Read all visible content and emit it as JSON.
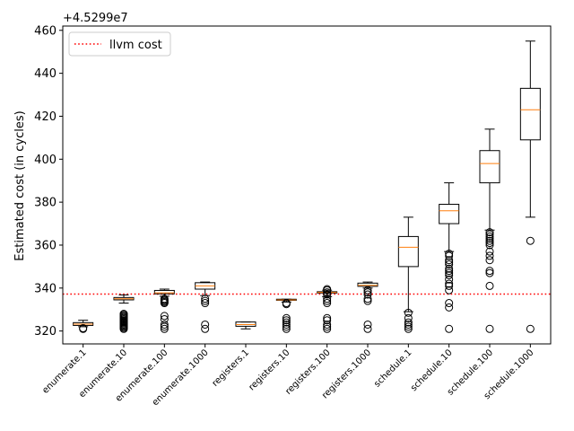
{
  "chart_data": {
    "type": "box",
    "ylabel": "Estimated cost (in cycles)",
    "y_offset_label": "+4.5299e7",
    "ylim": [
      314,
      462
    ],
    "yticks": [
      320,
      340,
      360,
      380,
      400,
      420,
      440,
      460
    ],
    "legend": {
      "label": "llvm cost",
      "placement": "top-left",
      "color": "#ff0000",
      "style": "dotted"
    },
    "reference_line": {
      "name": "llvm cost",
      "y": 337.2
    },
    "colors": {
      "box": "#000000",
      "median": "#ff7f0e",
      "reference": "#ff0000"
    },
    "categories": [
      "enumerate.1",
      "enumerate.10",
      "enumerate.100",
      "enumerate.1000",
      "registers.1",
      "registers.10",
      "registers.100",
      "registers.1000",
      "schedule.1",
      "schedule.10",
      "schedule.100",
      "schedule.1000"
    ],
    "boxes": [
      {
        "category": "enumerate.1",
        "whislo": 322.0,
        "q1": 322.6,
        "med": 323.2,
        "q3": 323.9,
        "whishi": 325.0,
        "fliers": [
          321.0,
          321.3
        ]
      },
      {
        "category": "enumerate.10",
        "whislo": 333.0,
        "q1": 334.5,
        "med": 335.0,
        "q3": 335.6,
        "whishi": 336.8,
        "fliers": [
          321.0,
          321.5,
          322.0,
          322.5,
          323.0,
          323.5,
          324.0,
          324.5,
          325.0,
          325.5,
          326.0,
          326.5,
          327.0,
          327.5,
          328.0
        ]
      },
      {
        "category": "enumerate.100",
        "whislo": 336.2,
        "q1": 337.3,
        "med": 337.8,
        "q3": 338.9,
        "whishi": 339.5,
        "fliers": [
          321.0,
          322.0,
          323.0,
          325.5,
          327.0,
          333.0,
          333.5,
          334.0,
          334.5,
          335.0
        ]
      },
      {
        "category": "enumerate.1000",
        "whislo": 336.5,
        "q1": 339.5,
        "med": 341.0,
        "q3": 342.5,
        "whishi": 342.8,
        "fliers": [
          321.0,
          323.0,
          333.0,
          334.0,
          335.0
        ]
      },
      {
        "category": "registers.1",
        "whislo": 321.0,
        "q1": 322.2,
        "med": 323.0,
        "q3": 324.2,
        "whishi": 324.2,
        "fliers": []
      },
      {
        "category": "registers.10",
        "whislo": 333.5,
        "q1": 334.3,
        "med": 334.5,
        "q3": 334.8,
        "whishi": 334.8,
        "fliers": [
          321.0,
          322.0,
          323.0,
          324.0,
          325.0,
          326.0,
          332.5,
          333.0
        ]
      },
      {
        "category": "registers.100",
        "whislo": 336.0,
        "q1": 337.7,
        "med": 338.0,
        "q3": 338.3,
        "whishi": 339.0,
        "fliers": [
          321.0,
          322.0,
          323.0,
          325.0,
          326.0,
          333.0,
          334.0,
          335.0,
          337.0,
          338.0,
          339.0,
          339.5
        ]
      },
      {
        "category": "registers.1000",
        "whislo": 340.0,
        "q1": 340.8,
        "med": 341.3,
        "q3": 342.3,
        "whishi": 342.8,
        "fliers": [
          321.0,
          323.0,
          334.0,
          335.0,
          337.0,
          338.0,
          339.0
        ]
      },
      {
        "category": "schedule.1",
        "whislo": 329.0,
        "q1": 350.0,
        "med": 359.0,
        "q3": 364.0,
        "whishi": 373.0,
        "fliers": [
          321.0,
          322.0,
          323.0,
          324.0,
          326.0,
          328.5
        ]
      },
      {
        "category": "schedule.10",
        "whislo": 357.0,
        "q1": 370.0,
        "med": 376.0,
        "q3": 379.0,
        "whishi": 389.0,
        "fliers": [
          321.0,
          331.0,
          333.0,
          339.0,
          341.0,
          342.0,
          344.0,
          346.0,
          347.0,
          348.0,
          349.0,
          351.0,
          352.0,
          353.0,
          355.0,
          356.0
        ]
      },
      {
        "category": "schedule.100",
        "whislo": 367.0,
        "q1": 389.0,
        "med": 398.0,
        "q3": 404.0,
        "whishi": 414.0,
        "fliers": [
          321.0,
          341.0,
          347.0,
          348.0,
          353.0,
          355.0,
          357.0,
          360.0,
          361.0,
          362.0,
          363.0,
          364.0,
          365.0,
          366.0
        ]
      },
      {
        "category": "schedule.1000",
        "whislo": 373.0,
        "q1": 409.0,
        "med": 423.0,
        "q3": 433.0,
        "whishi": 455.0,
        "fliers": [
          321.0,
          362.0
        ]
      }
    ]
  }
}
